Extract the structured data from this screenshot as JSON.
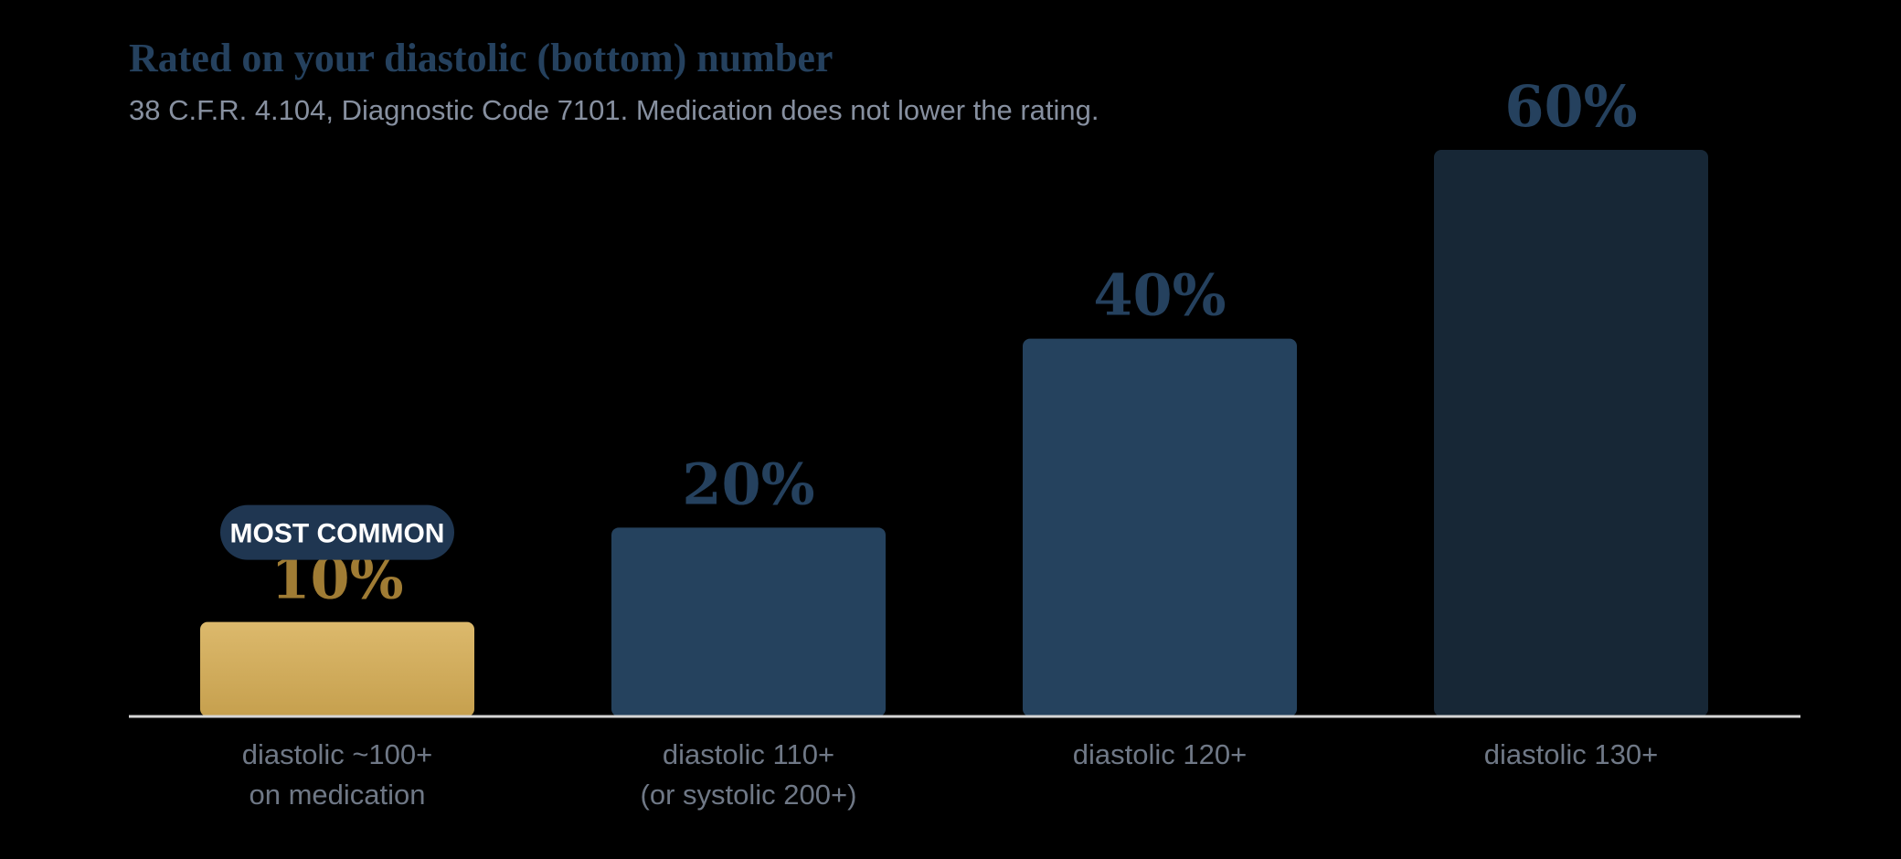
{
  "chart_data": {
    "type": "bar",
    "title": "Rated on your diastolic (bottom) number",
    "subtitle": "38 C.F.R. 4.104, Diagnostic Code 7101. Medication does not lower the rating.",
    "categories": [
      "diastolic ~100+\non medication",
      "diastolic 110+\n(or systolic 200+)",
      "diastolic 120+",
      "diastolic 130+"
    ],
    "values": [
      10,
      20,
      40,
      60
    ],
    "value_labels": [
      "10%",
      "20%",
      "40%",
      "60%"
    ],
    "colors": [
      "#d3ae5e",
      "#25425e",
      "#25425e",
      "#172736"
    ],
    "label_colors": [
      "#a07c34",
      "#25415e",
      "#25415e",
      "#25415e"
    ],
    "annotation": "MOST COMMON"
  }
}
